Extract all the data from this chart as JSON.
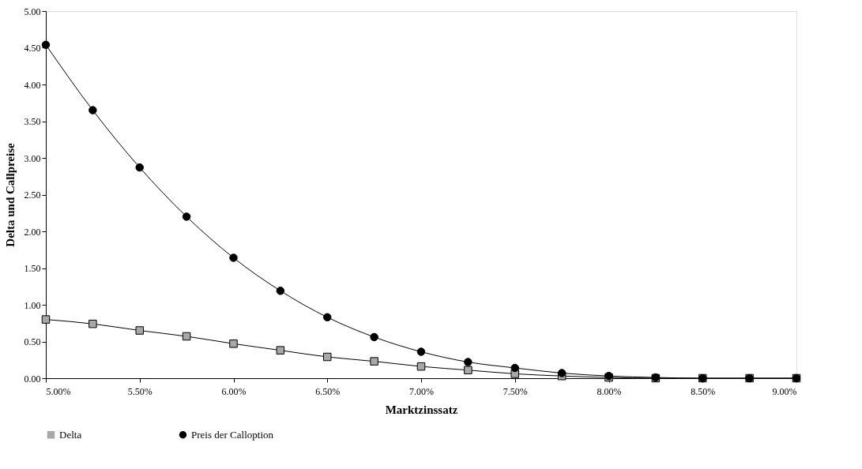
{
  "chart_data": {
    "type": "line",
    "xlabel": "Marktzinssatz",
    "ylabel": "Delta und Callpreise",
    "x": [
      5.0,
      5.25,
      5.5,
      5.75,
      6.0,
      6.25,
      6.5,
      6.75,
      7.0,
      7.25,
      7.5,
      7.75,
      8.0,
      8.25,
      8.5,
      8.75,
      9.0
    ],
    "series": [
      {
        "name": "Delta",
        "color": "#a8a8a8",
        "marker": "square",
        "values": [
          0.8,
          0.74,
          0.65,
          0.57,
          0.47,
          0.38,
          0.29,
          0.23,
          0.16,
          0.11,
          0.06,
          0.03,
          0.01,
          0.0,
          0.0,
          0.0,
          0.0
        ]
      },
      {
        "name": "Preis der Calloption",
        "color": "#000000",
        "marker": "circle",
        "values": [
          4.54,
          3.65,
          2.87,
          2.2,
          1.64,
          1.19,
          0.83,
          0.56,
          0.36,
          0.22,
          0.14,
          0.07,
          0.03,
          0.01,
          0.0,
          0.0,
          0.0
        ]
      }
    ],
    "xlim": [
      5.0,
      9.0
    ],
    "xticks": [
      {
        "value": 5.0,
        "label": "5.00%"
      },
      {
        "value": 5.5,
        "label": "5.50%"
      },
      {
        "value": 6.0,
        "label": "6.00%"
      },
      {
        "value": 6.5,
        "label": "6.50%"
      },
      {
        "value": 7.0,
        "label": "7.00%"
      },
      {
        "value": 7.5,
        "label": "7.50%"
      },
      {
        "value": 8.0,
        "label": "8.00%"
      },
      {
        "value": 8.5,
        "label": "8.50%"
      },
      {
        "value": 9.0,
        "label": "9.00%"
      }
    ],
    "ylim": [
      0,
      5
    ],
    "yticks": [
      {
        "value": 0,
        "label": "0.00"
      },
      {
        "value": 0.5,
        "label": "0.50"
      },
      {
        "value": 1,
        "label": "1.00"
      },
      {
        "value": 1.5,
        "label": "1.50"
      },
      {
        "value": 2,
        "label": "2.00"
      },
      {
        "value": 2.5,
        "label": "2.50"
      },
      {
        "value": 3,
        "label": "3.00"
      },
      {
        "value": 3.5,
        "label": "3.50"
      },
      {
        "value": 4,
        "label": "4.00"
      },
      {
        "value": 4.5,
        "label": "4.50"
      },
      {
        "value": 5,
        "label": "5.00"
      }
    ],
    "grid": false,
    "legend": "bottom",
    "line_style": "solid"
  }
}
